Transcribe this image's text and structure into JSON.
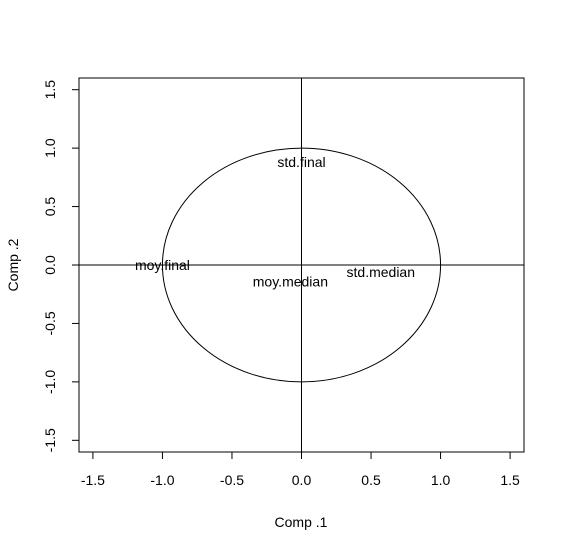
{
  "chart_data": {
    "type": "scatter",
    "title": "",
    "xlabel": "Comp .1",
    "ylabel": "Comp .2",
    "xlim": [
      -1.6,
      1.6
    ],
    "ylim": [
      -1.6,
      1.6
    ],
    "x_ticks": [
      -1.5,
      -1.0,
      -0.5,
      0.0,
      0.5,
      1.0,
      1.5
    ],
    "x_tick_labels": [
      "-1.5",
      "-1.0",
      "-0.5",
      "0.0",
      "0.5",
      "1.0",
      "1.5"
    ],
    "y_ticks": [
      -1.5,
      -1.0,
      -0.5,
      0.0,
      0.5,
      1.0,
      1.5
    ],
    "y_tick_labels": [
      "-1.5",
      "-1.0",
      "-0.5",
      "0.0",
      "0.5",
      "1.0",
      "1.5"
    ],
    "reference_lines": {
      "x": 0,
      "y": 0
    },
    "correlation_circle": {
      "center": [
        0,
        0
      ],
      "radius": 1
    },
    "grid": false,
    "points": [
      {
        "label": "std.final",
        "x": 0.0,
        "y": 0.88
      },
      {
        "label": "moy.final",
        "x": -1.0,
        "y": 0.0
      },
      {
        "label": "std.median",
        "x": 0.57,
        "y": -0.06
      },
      {
        "label": "moy.median",
        "x": -0.08,
        "y": -0.14
      }
    ]
  }
}
